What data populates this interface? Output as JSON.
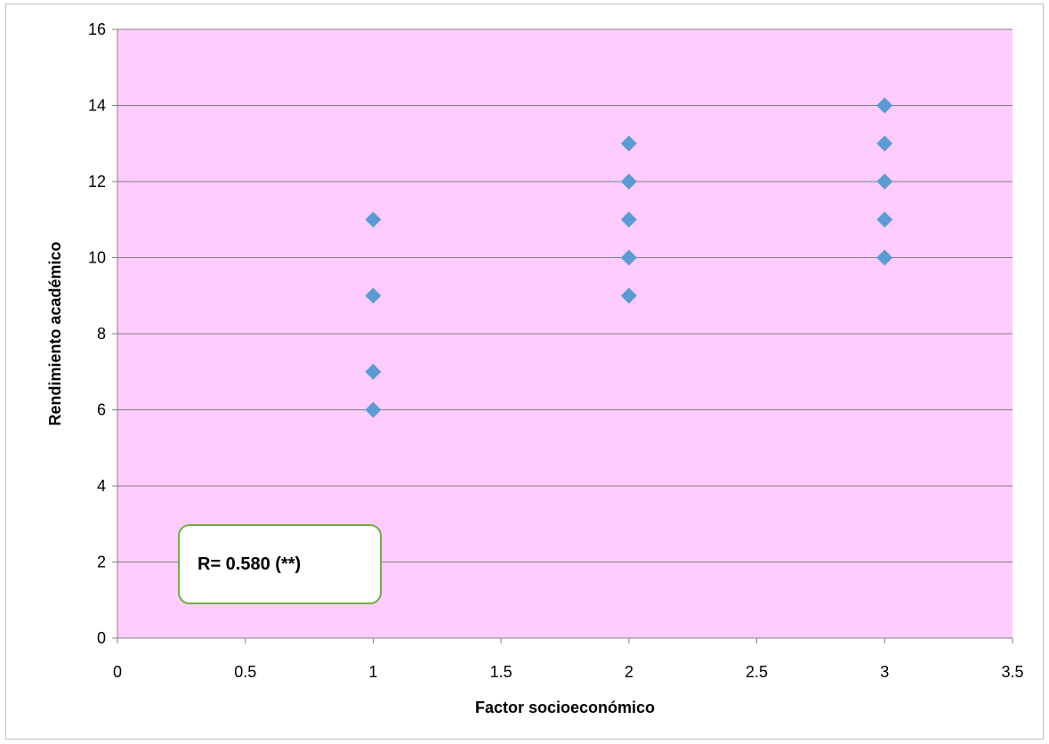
{
  "chart_data": {
    "type": "scatter",
    "title": "",
    "xlabel": "Factor socioeconómico",
    "ylabel": "Rendimiento académico",
    "xlim": [
      0,
      3.5
    ],
    "ylim": [
      0,
      16
    ],
    "x_ticks": [
      "0",
      "0.5",
      "1",
      "1.5",
      "2",
      "2.5",
      "3",
      "3.5"
    ],
    "y_ticks": [
      "0",
      "2",
      "4",
      "6",
      "8",
      "10",
      "12",
      "14",
      "16"
    ],
    "grid": "horizontal",
    "legend": "none",
    "series": [
      {
        "points": [
          {
            "x": 1,
            "y": 11
          },
          {
            "x": 1,
            "y": 9
          },
          {
            "x": 1,
            "y": 7
          },
          {
            "x": 1,
            "y": 6
          },
          {
            "x": 2,
            "y": 13
          },
          {
            "x": 2,
            "y": 12
          },
          {
            "x": 2,
            "y": 11
          },
          {
            "x": 2,
            "y": 10
          },
          {
            "x": 2,
            "y": 9
          },
          {
            "x": 3,
            "y": 14
          },
          {
            "x": 3,
            "y": 13
          },
          {
            "x": 3,
            "y": 12
          },
          {
            "x": 3,
            "y": 11
          },
          {
            "x": 3,
            "y": 10
          }
        ]
      }
    ],
    "annotation": "R= 0.580 (**)",
    "colors": {
      "plot_background": "#ffccff",
      "marker": "#5b9bd5",
      "gridline": "#808080",
      "annotation_border": "#70ad47"
    }
  }
}
